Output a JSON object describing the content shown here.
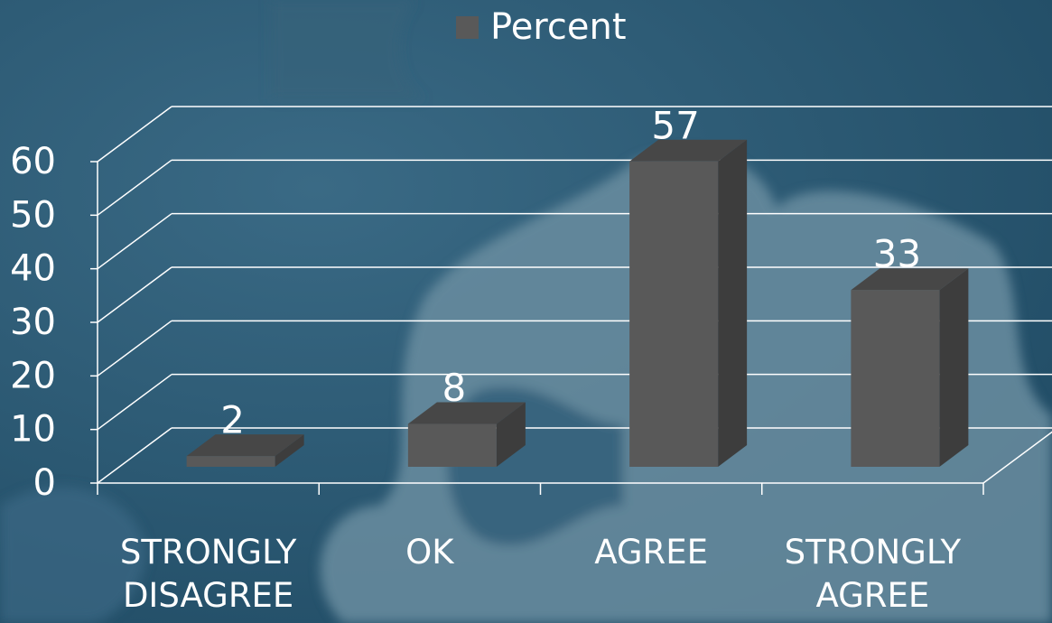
{
  "chart_data": {
    "type": "bar",
    "categories": [
      "STRONGLY DISAGREE",
      "OK",
      "AGREE",
      "STRONGLY AGREE"
    ],
    "series": [
      {
        "name": "Percent",
        "color": "#595959",
        "values": [
          2,
          8,
          57,
          33
        ]
      }
    ],
    "ylim": [
      0,
      60
    ],
    "yticks": [
      0,
      10,
      20,
      30,
      40,
      50,
      60
    ],
    "grid": true,
    "legend_position": "top"
  }
}
